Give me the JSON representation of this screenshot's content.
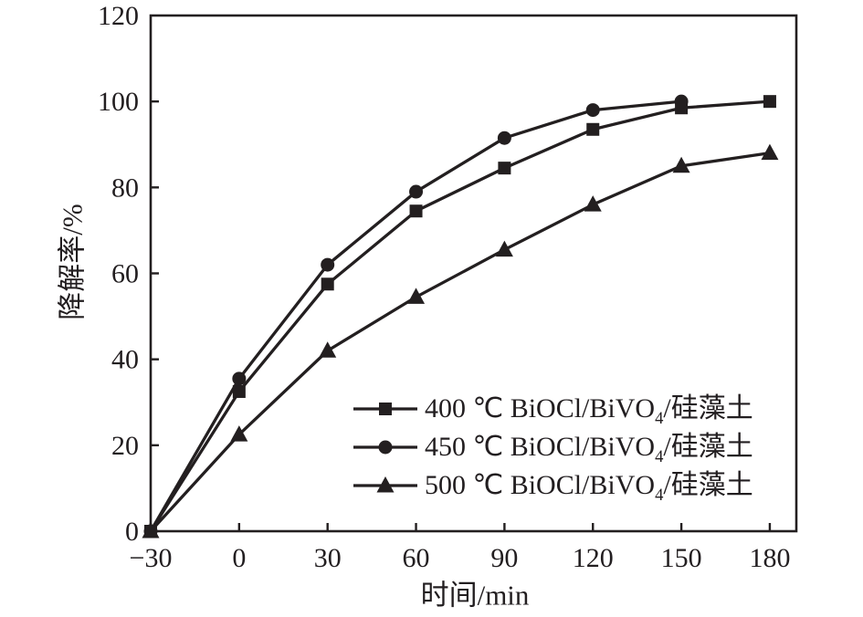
{
  "chart_data": {
    "type": "line",
    "title": "",
    "xlabel": "时间/min",
    "ylabel": "降解率/%",
    "xlim": [
      -30,
      189
    ],
    "ylim": [
      0,
      120
    ],
    "grid": false,
    "line_color": "#231f20",
    "x_ticks": [
      -30,
      0,
      30,
      60,
      90,
      120,
      150,
      180
    ],
    "x_tick_labels": [
      "−30",
      "0",
      "30",
      "60",
      "90",
      "120",
      "150",
      "180"
    ],
    "y_ticks": [
      0,
      20,
      40,
      60,
      80,
      100,
      120
    ],
    "y_tick_labels": [
      "0",
      "20",
      "40",
      "60",
      "80",
      "100",
      "120"
    ],
    "series": [
      {
        "name": "400 ℃ BiOCl/BiVO4/硅藻土",
        "marker": "square",
        "points": [
          [
            -30,
            0
          ],
          [
            0,
            32.5
          ],
          [
            30,
            57.5
          ],
          [
            60,
            74.5
          ],
          [
            90,
            84.5
          ],
          [
            120,
            93.5
          ],
          [
            150,
            98.5
          ],
          [
            180,
            100
          ]
        ]
      },
      {
        "name": "450 ℃ BiOCl/BiVO4/硅藻土",
        "marker": "circle",
        "points": [
          [
            -30,
            0
          ],
          [
            0,
            35.5
          ],
          [
            30,
            62
          ],
          [
            60,
            79
          ],
          [
            90,
            91.5
          ],
          [
            120,
            98
          ],
          [
            150,
            100
          ]
        ]
      },
      {
        "name": "500 ℃ BiOCl/BiVO4/硅藻土",
        "marker": "triangle",
        "points": [
          [
            -30,
            0
          ],
          [
            0,
            22.5
          ],
          [
            30,
            42
          ],
          [
            60,
            54.5
          ],
          [
            90,
            65.5
          ],
          [
            120,
            76
          ],
          [
            150,
            85
          ],
          [
            180,
            88
          ]
        ]
      }
    ],
    "legend": {
      "position": "inside-bottom-right",
      "entries": [
        {
          "marker": "square",
          "label_before": "400 ℃ BiOCl/BiVO",
          "label_sub": "4",
          "label_after": "/硅藻土"
        },
        {
          "marker": "circle",
          "label_before": "450 ℃ BiOCl/BiVO",
          "label_sub": "4",
          "label_after": "/硅藻土"
        },
        {
          "marker": "triangle",
          "label_before": "500 ℃ BiOCl/BiVO",
          "label_sub": "4",
          "label_after": "/硅藻土"
        }
      ]
    }
  }
}
